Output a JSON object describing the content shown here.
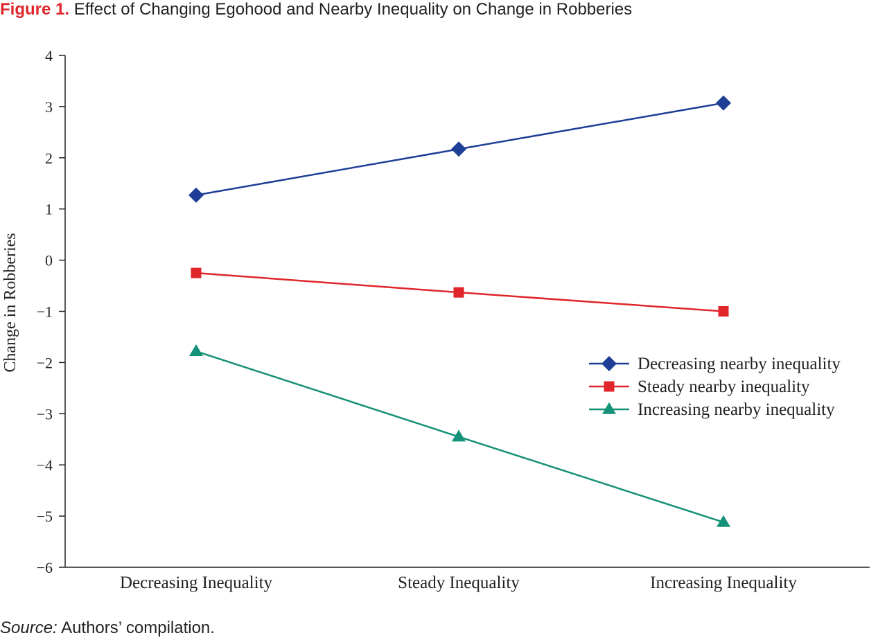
{
  "figure": {
    "label": "Figure 1.",
    "title": "Effect of Changing Egohood and Nearby Inequality on Change in Robberies"
  },
  "source": {
    "label": "Source:",
    "text": "Authors’ compilation."
  },
  "chart_data": {
    "type": "line",
    "title": "Effect of Changing Egohood and Nearby Inequality on Change in Robberies",
    "xlabel": "",
    "ylabel": "Change in Robberies",
    "categories": [
      "Decreasing Inequality",
      "Steady Inequality",
      "Increasing Inequality"
    ],
    "ylim": [
      -6,
      4
    ],
    "yticks": [
      4,
      3,
      2,
      1,
      0,
      -1,
      -2,
      -3,
      -4,
      -5,
      -6
    ],
    "ytick_labels": [
      "4",
      "3",
      "2",
      "1",
      "0",
      "−1",
      "−2",
      "−3",
      "−4",
      "−5",
      "−6"
    ],
    "grid": false,
    "legend_position": "right",
    "series": [
      {
        "name": "Decreasing nearby inequality",
        "values": [
          1.27,
          2.17,
          3.07
        ],
        "color": "#1f3f97",
        "marker": "diamond"
      },
      {
        "name": "Steady nearby inequality",
        "values": [
          -0.25,
          -0.63,
          -1.0
        ],
        "color": "#e0262b",
        "marker": "square"
      },
      {
        "name": "Increasing nearby inequality",
        "values": [
          -1.78,
          -3.45,
          -5.12
        ],
        "color": "#149178",
        "marker": "triangle"
      }
    ]
  }
}
